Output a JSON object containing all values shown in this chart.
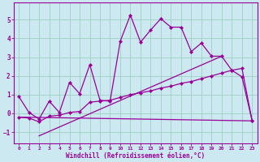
{
  "background_color": "#cce8f0",
  "grid_color": "#9ecfbf",
  "line_color": "#990099",
  "xlabel": "Windchill (Refroidissement éolien,°C)",
  "xlim": [
    -0.5,
    23.5
  ],
  "ylim": [
    -1.6,
    5.9
  ],
  "yticks": [
    -1,
    0,
    1,
    2,
    3,
    4,
    5
  ],
  "xticks": [
    0,
    1,
    2,
    3,
    4,
    5,
    6,
    7,
    8,
    9,
    10,
    11,
    12,
    13,
    14,
    15,
    16,
    17,
    18,
    19,
    20,
    21,
    22,
    23
  ],
  "series1_x": [
    0,
    1,
    2,
    3,
    4,
    5,
    6,
    7,
    8,
    9,
    10,
    11,
    12,
    13,
    14,
    15,
    16,
    17,
    18,
    19,
    20,
    21,
    22,
    23
  ],
  "series1_y": [
    0.9,
    0.05,
    -0.3,
    0.65,
    0.05,
    1.65,
    1.05,
    2.6,
    0.7,
    0.65,
    3.85,
    5.25,
    3.8,
    4.45,
    5.05,
    4.6,
    4.6,
    3.3,
    3.75,
    3.05,
    3.05,
    2.3,
    1.95,
    -0.4
  ],
  "series2_x": [
    0,
    1,
    2,
    3,
    4,
    5,
    6,
    7,
    8,
    9,
    10,
    11,
    12,
    13,
    14,
    15,
    16,
    17,
    18,
    19,
    20,
    21,
    22,
    23
  ],
  "series2_y": [
    -0.2,
    -0.25,
    -0.45,
    -0.15,
    -0.1,
    0.05,
    0.1,
    0.6,
    0.65,
    0.7,
    0.85,
    1.0,
    1.1,
    1.2,
    1.35,
    1.45,
    1.6,
    1.7,
    1.85,
    2.0,
    2.15,
    2.3,
    2.4,
    -0.4
  ],
  "series3_x": [
    0,
    23
  ],
  "series3_y": [
    -0.2,
    -0.4
  ],
  "series4_x": [
    2,
    20
  ],
  "series4_y": [
    -1.2,
    3.05
  ]
}
